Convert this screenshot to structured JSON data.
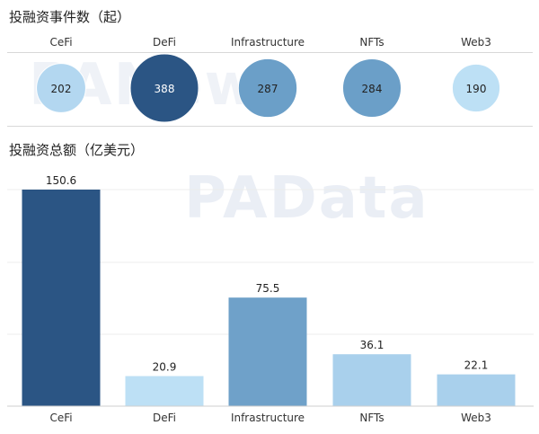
{
  "titles": {
    "bubble_title": "投融资事件数（起）",
    "bar_title": "投融资总额（亿美元）"
  },
  "watermarks": [
    "PANews",
    "PAData"
  ],
  "colors": {
    "dark": "#2b5584",
    "mid": "#6b9fc8",
    "light": "#a9d0ec",
    "lighter": "#bde0f5"
  },
  "chart_data": [
    {
      "type": "scatter",
      "title": "投融资事件数（起）",
      "categories": [
        "CeFi",
        "DeFi",
        "Infrastructure",
        "NFTs",
        "Web3"
      ],
      "values": [
        202,
        388,
        287,
        284,
        190
      ],
      "encoding": "bubble-size",
      "bubble_colors": [
        "#b3d7f0",
        "#2b5584",
        "#6b9fc8",
        "#6b9fc8",
        "#bde0f5"
      ]
    },
    {
      "type": "bar",
      "title": "投融资总额（亿美元）",
      "categories": [
        "CeFi",
        "DeFi",
        "Infrastructure",
        "NFTs",
        "Web3"
      ],
      "values": [
        150.6,
        20.9,
        75.5,
        36.1,
        22.1
      ],
      "ylim": [
        0,
        150.6
      ],
      "grid": true,
      "bar_colors": [
        "#2b5584",
        "#bde0f5",
        "#6fa1c9",
        "#a9d0ec",
        "#a9d0ec"
      ]
    }
  ]
}
